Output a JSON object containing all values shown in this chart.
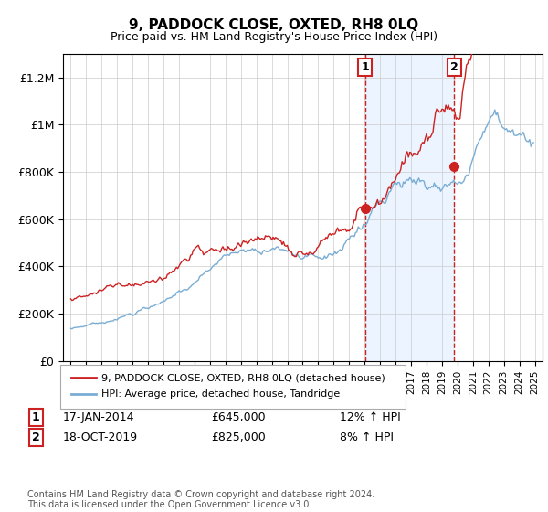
{
  "title": "9, PADDOCK CLOSE, OXTED, RH8 0LQ",
  "subtitle": "Price paid vs. HM Land Registry's House Price Index (HPI)",
  "legend_line1": "9, PADDOCK CLOSE, OXTED, RH8 0LQ (detached house)",
  "legend_line2": "HPI: Average price, detached house, Tandridge",
  "footnote": "Contains HM Land Registry data © Crown copyright and database right 2024.\nThis data is licensed under the Open Government Licence v3.0.",
  "sale1_date": "17-JAN-2014",
  "sale1_price": "£645,000",
  "sale1_hpi": "12% ↑ HPI",
  "sale2_date": "18-OCT-2019",
  "sale2_price": "£825,000",
  "sale2_hpi": "8% ↑ HPI",
  "sale1_x": 2014.04,
  "sale1_y": 645000,
  "sale2_x": 2019.79,
  "sale2_y": 825000,
  "hpi_color": "#7aadd4",
  "price_color": "#cc2222",
  "vline_color": "#cc2222",
  "shade_color": "#ddeeff",
  "ylim": [
    0,
    1300000
  ],
  "yticks": [
    0,
    200000,
    400000,
    600000,
    800000,
    1000000,
    1200000
  ],
  "ytick_labels": [
    "£0",
    "£200K",
    "£400K",
    "£600K",
    "£800K",
    "£1M",
    "£1.2M"
  ],
  "xmin": 1994.5,
  "xmax": 2025.5,
  "start_year": 1995,
  "end_year": 2025
}
